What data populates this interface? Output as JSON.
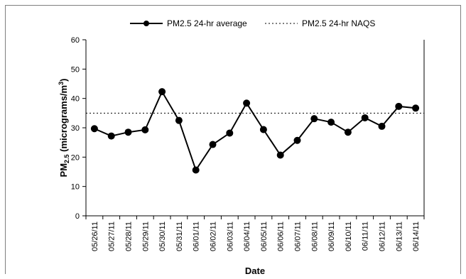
{
  "chart_data": {
    "type": "line",
    "title": "",
    "xlabel": "Date",
    "ylabel": {
      "prefix": "PM",
      "prefix_sub": "2.5",
      "text": " (micrograms/m",
      "sup": "3",
      "suffix": ")"
    },
    "ylim": [
      0,
      60
    ],
    "yticks": [
      0,
      10,
      20,
      30,
      40,
      50,
      60
    ],
    "categories": [
      "05/26/11",
      "05/27/11",
      "05/28/11",
      "05/29/11",
      "05/30/11",
      "05/31/11",
      "06/01/11",
      "06/02/11",
      "06/03/11",
      "06/04/11",
      "06/05/11",
      "06/06/11",
      "06/07/11",
      "06/08/11",
      "06/09/11",
      "06/10/11",
      "06/11/11",
      "06/12/11",
      "06/13/11",
      "06/14/11"
    ],
    "series": [
      {
        "name": "PM2.5 24-hr average",
        "style": "solid-line-circle-markers",
        "color": "#000000",
        "values": [
          29.7,
          27.2,
          28.5,
          29.3,
          42.3,
          32.5,
          15.6,
          24.3,
          28.2,
          38.4,
          29.4,
          20.7,
          25.7,
          33.1,
          31.9,
          28.5,
          33.4,
          30.5,
          37.3,
          36.7
        ]
      },
      {
        "name": "PM2.5 24-hr NAQS",
        "style": "dotted-line",
        "color": "#000000",
        "constant": 35
      }
    ],
    "legend_position": "top-center",
    "grid": false
  }
}
